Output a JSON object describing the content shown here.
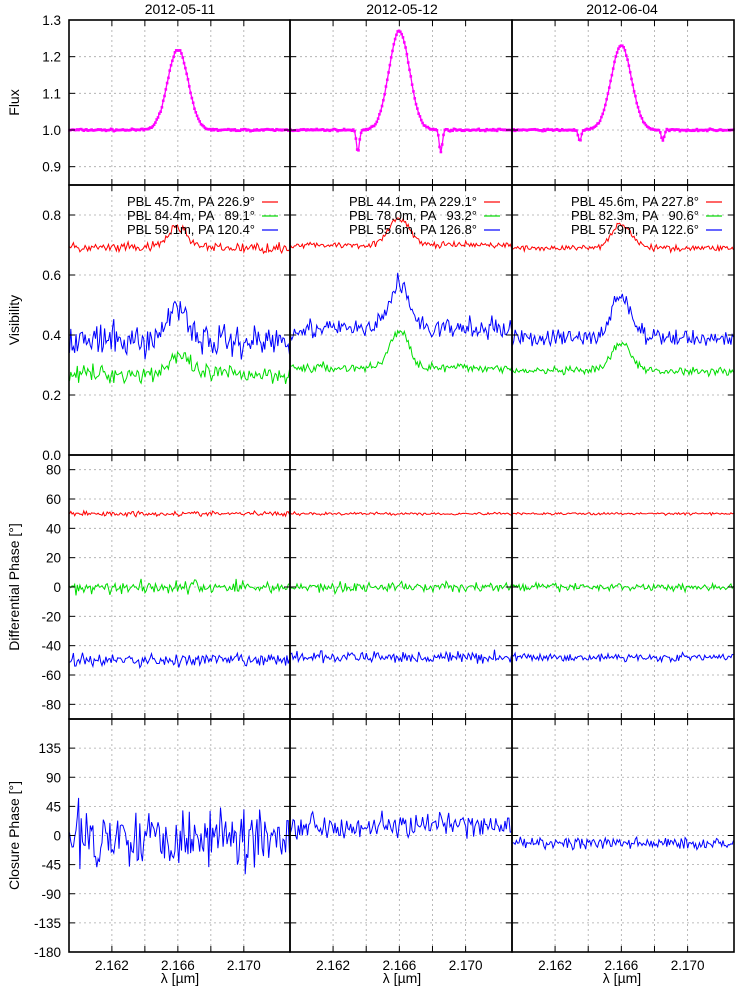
{
  "chart_data": {
    "type": "line",
    "columns": [
      "2012-05-11",
      "2012-05-12",
      "2012-06-04"
    ],
    "xlabel": "λ [µm]",
    "xlim": [
      2.1594,
      2.1728
    ],
    "xticks": [
      2.162,
      2.164,
      2.166,
      2.168,
      2.17
    ],
    "xtick_labels": [
      "2.162",
      "",
      "2.166",
      "",
      "2.170"
    ],
    "grid": true,
    "colors": {
      "flux": "#ff00ff",
      "red": "#ff0000",
      "green": "#00dd00",
      "blue": "#0000ff"
    },
    "panels": {
      "flux": {
        "ylabel": "Flux",
        "ylim": [
          0.85,
          1.3
        ],
        "yticks": [
          0.9,
          1.0,
          1.1,
          1.2,
          1.3
        ],
        "ytick_labels": [
          "0.9",
          "1.0",
          "1.1",
          "1.2",
          "1.3"
        ],
        "series": [
          {
            "column": 0,
            "color": "flux",
            "peak": 1.22,
            "base": 1.0,
            "noise": 0.004,
            "dip": 0.0
          },
          {
            "column": 1,
            "color": "flux",
            "peak": 1.27,
            "base": 1.0,
            "noise": 0.004,
            "dip": 0.06
          },
          {
            "column": 2,
            "color": "flux",
            "peak": 1.23,
            "base": 1.0,
            "noise": 0.004,
            "dip": 0.03
          }
        ]
      },
      "visibility": {
        "ylabel": "Visibility",
        "ylim": [
          0.0,
          0.9
        ],
        "yticks": [
          0.0,
          0.2,
          0.4,
          0.6,
          0.8
        ],
        "ytick_labels": [
          "0.0",
          "0.2",
          "0.4",
          "0.6",
          "0.8"
        ],
        "legend_placement": "top",
        "legends": [
          [
            "PBL 45.7m, PA 226.9°",
            "PBL 84.4m, PA   89.1°",
            "PBL 59.1m, PA 120.4°"
          ],
          [
            "PBL 44.1m, PA 229.1°",
            "PBL 78.0m, PA   93.2°",
            "PBL 55.6m, PA 126.8°"
          ],
          [
            "PBL 45.6m, PA 227.8°",
            "PBL 82.3m, PA   90.6°",
            "PBL 57.9m, PA 122.6°"
          ]
        ],
        "series": [
          {
            "column": 0,
            "color": "red",
            "base": 0.69,
            "bump": 0.07,
            "noise": 0.025
          },
          {
            "column": 0,
            "color": "green",
            "base": 0.27,
            "bump": 0.06,
            "noise": 0.045
          },
          {
            "column": 0,
            "color": "blue",
            "base": 0.38,
            "bump": 0.12,
            "noise": 0.08
          },
          {
            "column": 1,
            "color": "red",
            "base": 0.7,
            "bump": 0.09,
            "noise": 0.015
          },
          {
            "column": 1,
            "color": "green",
            "base": 0.29,
            "bump": 0.12,
            "noise": 0.025
          },
          {
            "column": 1,
            "color": "blue",
            "base": 0.42,
            "bump": 0.15,
            "noise": 0.05
          },
          {
            "column": 2,
            "color": "red",
            "base": 0.69,
            "bump": 0.08,
            "noise": 0.015
          },
          {
            "column": 2,
            "color": "green",
            "base": 0.28,
            "bump": 0.09,
            "noise": 0.02
          },
          {
            "column": 2,
            "color": "blue",
            "base": 0.39,
            "bump": 0.14,
            "noise": 0.045
          }
        ]
      },
      "differential_phase": {
        "ylabel": "Differential Phase [°]",
        "ylim": [
          -90,
          90
        ],
        "yticks": [
          -80,
          -60,
          -40,
          -20,
          0,
          20,
          40,
          60,
          80
        ],
        "ytick_labels": [
          "-80",
          "-60",
          "-40",
          "-20",
          "0",
          "20",
          "40",
          "60",
          "80"
        ],
        "series": [
          {
            "column": 0,
            "color": "red",
            "base": 50,
            "noise": 2.5
          },
          {
            "column": 0,
            "color": "green",
            "base": 0,
            "noise": 7
          },
          {
            "column": 0,
            "color": "blue",
            "base": -50,
            "noise": 7
          },
          {
            "column": 1,
            "color": "red",
            "base": 50,
            "noise": 1.5
          },
          {
            "column": 1,
            "color": "green",
            "base": 0,
            "noise": 5
          },
          {
            "column": 1,
            "color": "blue",
            "base": -48,
            "noise": 6
          },
          {
            "column": 2,
            "color": "red",
            "base": 50,
            "noise": 1.2
          },
          {
            "column": 2,
            "color": "green",
            "base": 0,
            "noise": 4
          },
          {
            "column": 2,
            "color": "blue",
            "base": -48,
            "noise": 4
          }
        ]
      },
      "closure_phase": {
        "ylabel": "Closure Phase [°]",
        "ylim": [
          -180,
          180
        ],
        "yticks": [
          -180,
          -135,
          -90,
          -45,
          0,
          45,
          90,
          135
        ],
        "ytick_labels": [
          "-180",
          "-135",
          "-90",
          "-45",
          "0",
          "45",
          "90",
          "135"
        ],
        "series": [
          {
            "column": 0,
            "color": "blue",
            "base": 0,
            "noise": 50
          },
          {
            "column": 1,
            "color": "blue",
            "base": 15,
            "noise": 20
          },
          {
            "column": 2,
            "color": "blue",
            "base": -12,
            "noise": 10
          }
        ]
      }
    }
  }
}
